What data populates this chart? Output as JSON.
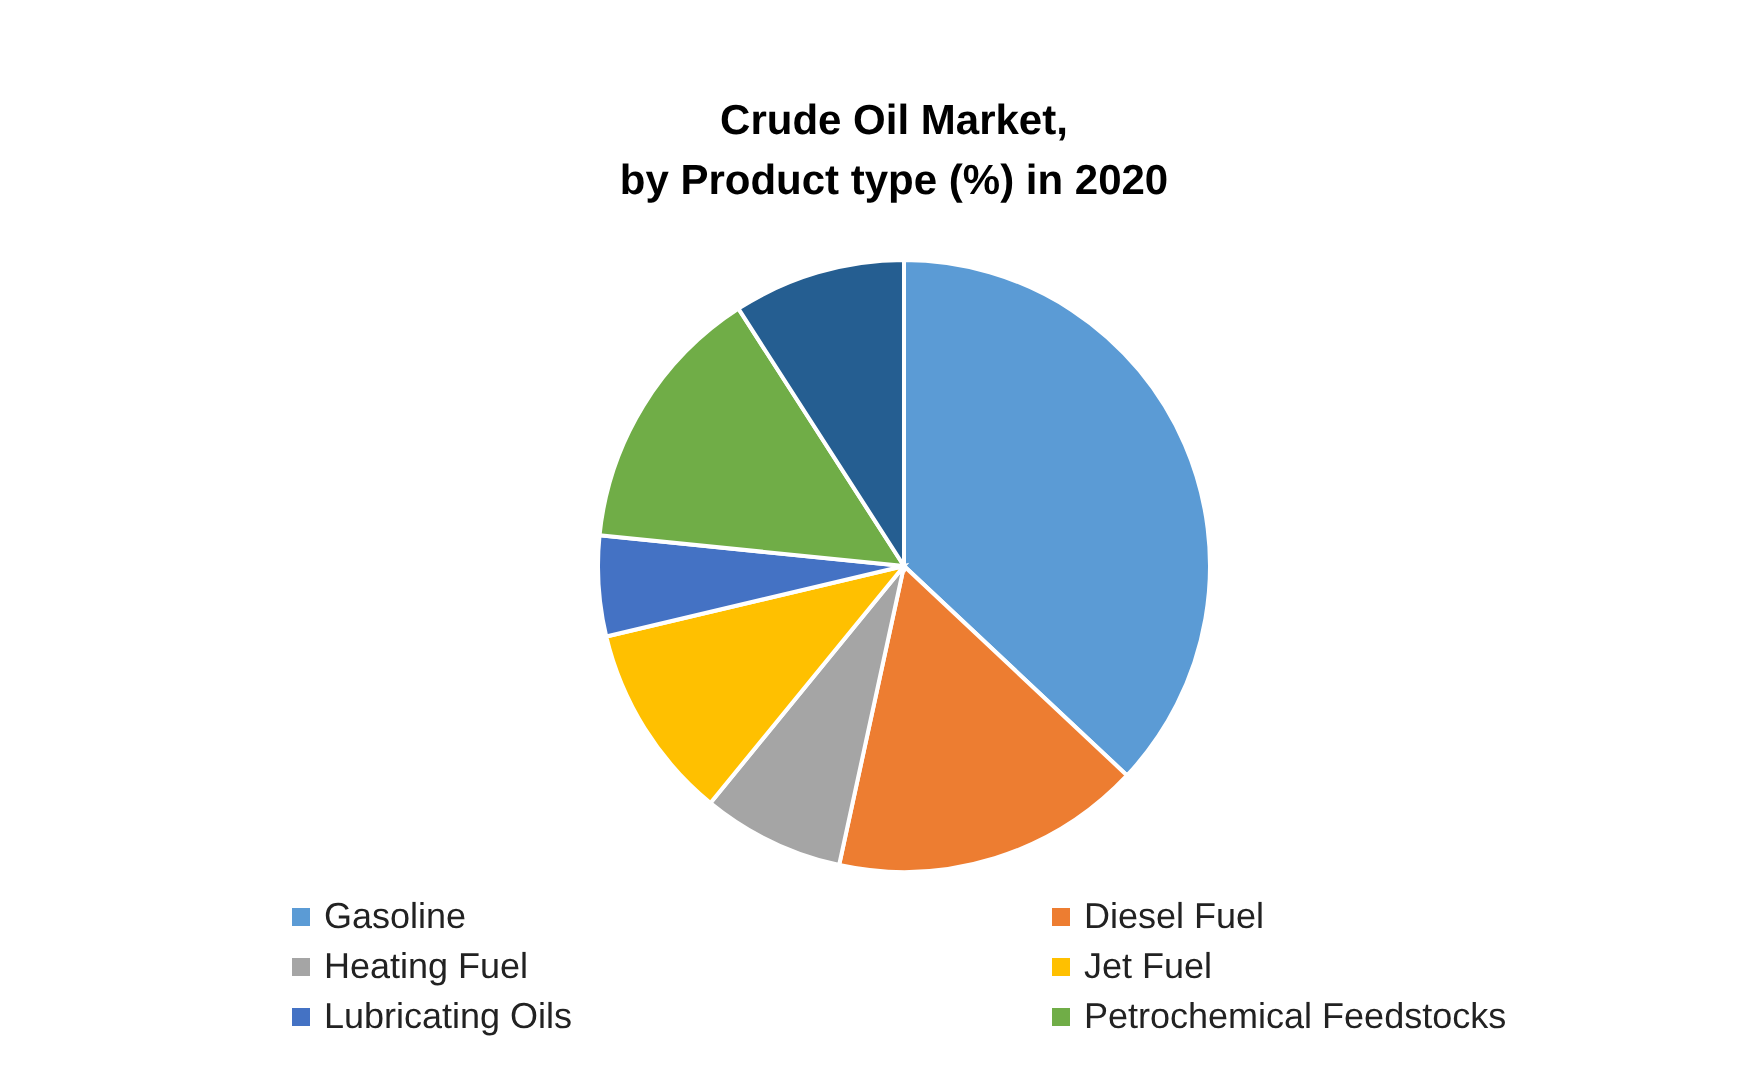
{
  "chart_data": {
    "type": "pie",
    "title": "Crude Oil Market,\nby Product type (%) in 2020",
    "categories": [
      "Gasoline",
      "Diesel Fuel",
      "Heating Fuel",
      "Jet Fuel",
      "Lubricating Oils",
      "Petrochemical Feedstocks",
      null
    ],
    "values": [
      37,
      16.4,
      7.5,
      10.4,
      5.3,
      14.3,
      9.1
    ],
    "colors": [
      "#5b9bd5",
      "#ed7d31",
      "#a5a5a5",
      "#ffc000",
      "#4472c4",
      "#70ad47",
      "#255e91"
    ],
    "legend": "bottom"
  }
}
